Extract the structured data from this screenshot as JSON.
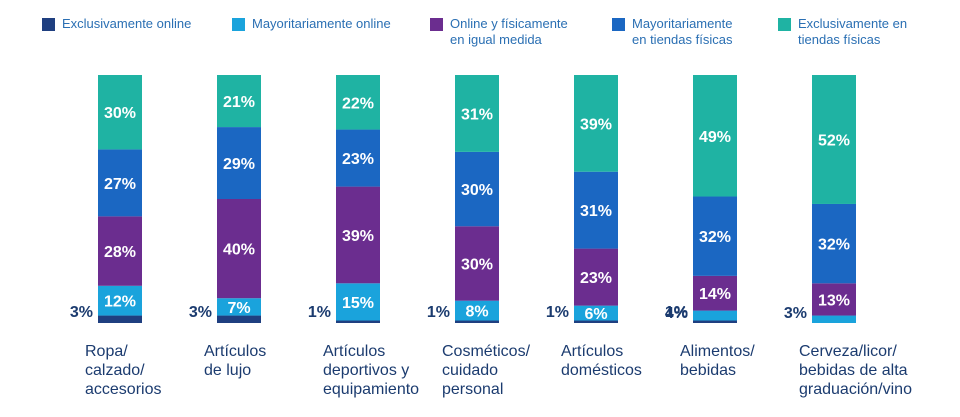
{
  "chart_data": {
    "type": "bar",
    "stacked": true,
    "orientation": "vertical",
    "grid": false,
    "legend_position": "top",
    "ylim": [
      0,
      100
    ],
    "categories": [
      [
        "Ropa/",
        "calzado/",
        "accesorios"
      ],
      [
        "Artículos",
        "de lujo"
      ],
      [
        "Artículos",
        "deportivos y",
        "equipamiento"
      ],
      [
        "Cosméticos/",
        "cuidado",
        "personal"
      ],
      [
        "Artículos",
        "domésticos"
      ],
      [
        "Alimentos/",
        "bebidas"
      ],
      [
        "Cerveza/licor/",
        "bebidas de alta",
        "graduación/vino"
      ]
    ],
    "series": [
      {
        "name": [
          "Exclusivamente online"
        ],
        "color": "#1f3f80",
        "values": [
          3,
          3,
          1,
          1,
          1,
          1,
          0
        ]
      },
      {
        "name": [
          "Mayoritariamente online"
        ],
        "color": "#1aa3dc",
        "values": [
          12,
          7,
          15,
          8,
          6,
          4,
          3
        ]
      },
      {
        "name": [
          "Online y físicamente",
          "en igual medida"
        ],
        "color": "#6b2d8f",
        "values": [
          28,
          40,
          39,
          30,
          23,
          14,
          13
        ]
      },
      {
        "name": [
          "Mayoritariamente",
          "en tiendas físicas"
        ],
        "color": "#1b67c2",
        "values": [
          27,
          29,
          23,
          30,
          31,
          32,
          32
        ]
      },
      {
        "name": [
          "Exclusivamente en",
          "tiendas físicas"
        ],
        "color": "#1fb3a3",
        "values": [
          30,
          21,
          22,
          31,
          39,
          49,
          52
        ]
      }
    ],
    "data_labels": [
      [
        "3%",
        "12%",
        "28%",
        "27%",
        "30%"
      ],
      [
        "3%",
        "7%",
        "40%",
        "29%",
        "21%"
      ],
      [
        "1%",
        "15%",
        "39%",
        "23%",
        "22%"
      ],
      [
        "1%",
        "8%",
        "30%",
        "30%",
        "31%"
      ],
      [
        "1%",
        "6%",
        "23%",
        "31%",
        "39%"
      ],
      [
        "1%",
        "4%",
        "14%",
        "32%",
        "49%"
      ],
      [
        "",
        "3%",
        "13%",
        "32%",
        "52%"
      ]
    ]
  }
}
